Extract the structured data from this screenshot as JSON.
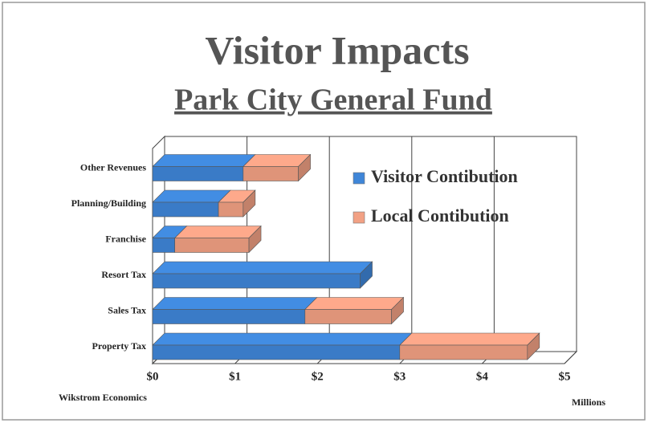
{
  "chart_data": {
    "type": "bar3d-stacked-horizontal",
    "title": "Visitor Impacts",
    "subtitle": "Park City General Fund",
    "x_label": "Millions",
    "annotation": "Wikstrom Economics",
    "categories": [
      "Property Tax",
      "Sales Tax",
      "Resort Tax",
      "Franchise",
      "Planning/Building",
      "Other Revenues"
    ],
    "series": [
      {
        "name": "Visitor Contibution",
        "color": "#3f86d8",
        "values": [
          3.0,
          1.85,
          2.52,
          0.27,
          0.8,
          1.1
        ]
      },
      {
        "name": "Local Contibution",
        "color": "#f2a184",
        "values": [
          1.55,
          1.05,
          0,
          0.9,
          0.3,
          0.67
        ]
      }
    ],
    "xlim": [
      0,
      5
    ],
    "xticks": [
      {
        "value": 0,
        "label": "$0"
      },
      {
        "value": 1,
        "label": "$1"
      },
      {
        "value": 2,
        "label": "$2"
      },
      {
        "value": 3,
        "label": "$3"
      },
      {
        "value": 4,
        "label": "$4"
      },
      {
        "value": 5,
        "label": "$5"
      }
    ],
    "grid": true,
    "legend": "upper right"
  }
}
